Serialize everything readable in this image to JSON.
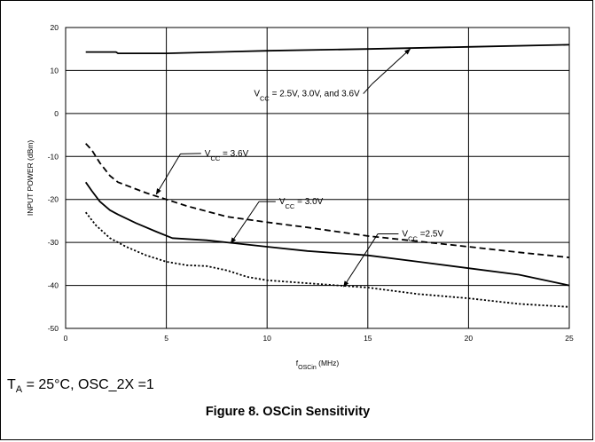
{
  "figure": {
    "conditions_prefix": "T",
    "conditions_sub": "A",
    "conditions_rest": " = 25°C, OSC_2X =1",
    "caption": "Figure 8. OSCin Sensitivity"
  },
  "chart_data": {
    "type": "line",
    "title": "",
    "xlabel": {
      "main": "f",
      "sub": "OSCin",
      "rest": " (MHz)"
    },
    "ylabel": "INPUT POWER (dBm)",
    "xlim": [
      0,
      25
    ],
    "ylim": [
      -50,
      20
    ],
    "xticks": [
      0,
      5,
      10,
      15,
      20,
      25
    ],
    "yticks": [
      -50,
      -40,
      -30,
      -20,
      -10,
      0,
      10,
      20
    ],
    "grid": true,
    "series": [
      {
        "line_style": "solid",
        "points": [
          [
            1.0,
            14.3
          ],
          [
            2.5,
            14.3
          ],
          [
            2.6,
            14.0
          ],
          [
            5.0,
            14.0
          ],
          [
            7.5,
            14.3
          ],
          [
            10.0,
            14.6
          ],
          [
            15.0,
            15.0
          ],
          [
            20.0,
            15.5
          ],
          [
            25.0,
            16.0
          ]
        ]
      },
      {
        "line_style": "dashed",
        "points": [
          [
            1.0,
            -7.0
          ],
          [
            1.3,
            -8.5
          ],
          [
            1.7,
            -11.5
          ],
          [
            2.2,
            -14.5
          ],
          [
            2.6,
            -16.0
          ],
          [
            4.0,
            -18.5
          ],
          [
            5.0,
            -20.0
          ],
          [
            6.0,
            -21.5
          ],
          [
            8.0,
            -24.0
          ],
          [
            10.0,
            -25.3
          ],
          [
            12.0,
            -26.5
          ],
          [
            15.0,
            -28.5
          ],
          [
            18.0,
            -30.0
          ],
          [
            20.0,
            -31.0
          ],
          [
            22.5,
            -32.3
          ],
          [
            25.0,
            -33.5
          ]
        ]
      },
      {
        "line_style": "solid",
        "points": [
          [
            1.0,
            -16.0
          ],
          [
            1.3,
            -18.0
          ],
          [
            1.7,
            -20.5
          ],
          [
            2.2,
            -22.5
          ],
          [
            2.6,
            -23.5
          ],
          [
            3.5,
            -25.5
          ],
          [
            4.5,
            -27.5
          ],
          [
            5.3,
            -29.0
          ],
          [
            7.0,
            -29.5
          ],
          [
            8.0,
            -30.0
          ],
          [
            10.0,
            -31.0
          ],
          [
            12.0,
            -32.0
          ],
          [
            15.0,
            -33.0
          ],
          [
            17.5,
            -34.5
          ],
          [
            20.0,
            -36.0
          ],
          [
            22.5,
            -37.5
          ],
          [
            24.0,
            -39.0
          ],
          [
            25.0,
            -40.0
          ]
        ]
      },
      {
        "line_style": "dotted",
        "points": [
          [
            1.0,
            -23.0
          ],
          [
            1.5,
            -26.0
          ],
          [
            2.2,
            -29.0
          ],
          [
            3.0,
            -31.0
          ],
          [
            4.0,
            -33.0
          ],
          [
            5.0,
            -34.5
          ],
          [
            6.0,
            -35.3
          ],
          [
            7.0,
            -35.5
          ],
          [
            8.0,
            -36.5
          ],
          [
            9.0,
            -38.0
          ],
          [
            10.0,
            -38.8
          ],
          [
            12.0,
            -39.5
          ],
          [
            15.0,
            -40.5
          ],
          [
            17.5,
            -42.0
          ],
          [
            20.0,
            -43.0
          ],
          [
            22.5,
            -44.3
          ],
          [
            25.0,
            -45.0
          ]
        ]
      }
    ],
    "annotations": [
      {
        "id": "anno-all",
        "label_main": "V",
        "label_sub": "CC",
        "label_rest": " = 2.5V, 3.0V, and 3.6V",
        "target": [
          17.1,
          15.0
        ],
        "elbow": [
          15.2,
          6.8
        ],
        "label_at": [
          14.6,
          4.6
        ],
        "anchor": "end"
      },
      {
        "id": "anno-3v6",
        "label_main": "V",
        "label_sub": "CC",
        "label_rest": " = 3.6V",
        "target": [
          4.5,
          -18.8
        ],
        "elbow": [
          5.7,
          -9.4
        ],
        "label_at": [
          6.9,
          -9.3
        ],
        "anchor": "start"
      },
      {
        "id": "anno-3v0",
        "label_main": "V",
        "label_sub": "CC",
        "label_rest": " = 3.0V",
        "target": [
          8.2,
          -30.2
        ],
        "elbow": [
          9.6,
          -20.5
        ],
        "label_at": [
          10.6,
          -20.5
        ],
        "anchor": "start"
      },
      {
        "id": "anno-2v5",
        "label_main": "V",
        "label_sub": "CC",
        "label_rest": " =2.5V",
        "target": [
          13.8,
          -40.3
        ],
        "elbow": [
          15.5,
          -28.0
        ],
        "label_at": [
          16.7,
          -28.0
        ],
        "anchor": "start"
      }
    ]
  }
}
